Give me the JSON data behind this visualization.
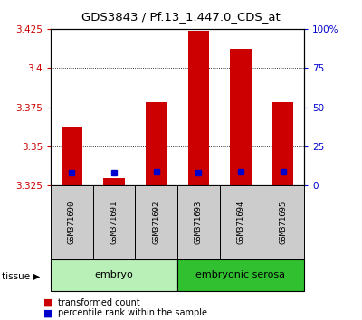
{
  "title": "GDS3843 / Pf.13_1.447.0_CDS_at",
  "samples": [
    "GSM371690",
    "GSM371691",
    "GSM371692",
    "GSM371693",
    "GSM371694",
    "GSM371695"
  ],
  "red_values": [
    3.362,
    3.33,
    3.378,
    3.424,
    3.412,
    3.378
  ],
  "blue_values": [
    3.333,
    3.333,
    3.334,
    3.333,
    3.334,
    3.334
  ],
  "ymin": 3.325,
  "ymax": 3.425,
  "yticks_left": [
    3.325,
    3.35,
    3.375,
    3.4,
    3.425
  ],
  "yticks_right_vals": [
    3.325,
    3.35,
    3.375,
    3.4,
    3.425
  ],
  "yticks_right_labels": [
    "0",
    "25",
    "50",
    "75",
    "100%"
  ],
  "tissue_groups": [
    {
      "label": "embryo",
      "samples": [
        0,
        1,
        2
      ],
      "color": "#b8f0b8"
    },
    {
      "label": "embryonic serosa",
      "samples": [
        3,
        4,
        5
      ],
      "color": "#30c030"
    }
  ],
  "bar_width": 0.5,
  "bar_color": "#cc0000",
  "blue_color": "#0000cc",
  "bg_color": "#ffffff",
  "plot_bg": "#ffffff",
  "sample_bg": "#cccccc",
  "legend_items": [
    {
      "label": "transformed count",
      "color": "#cc0000"
    },
    {
      "label": "percentile rank within the sample",
      "color": "#0000cc"
    }
  ]
}
